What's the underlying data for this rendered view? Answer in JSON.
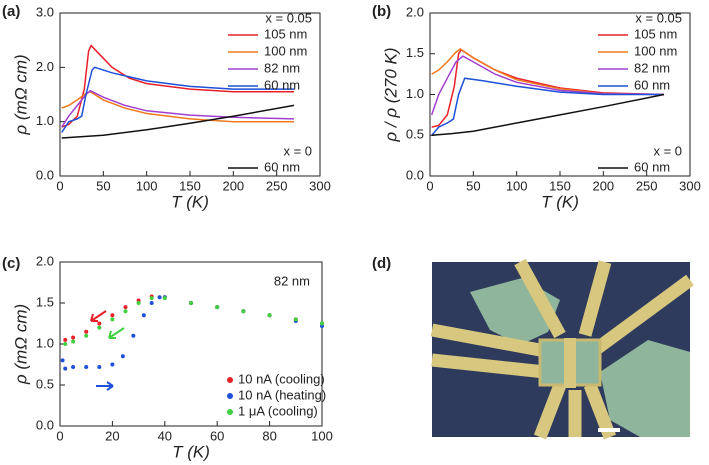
{
  "chart_data": [
    {
      "type": "line",
      "panel_label": "(a)",
      "xlabel": "T (K)",
      "ylabel": "ρ (mΩ cm)",
      "xlim": [
        0,
        300
      ],
      "xticks": [
        0,
        50,
        100,
        150,
        200,
        250,
        300
      ],
      "ylim": [
        0,
        3.0
      ],
      "yticks": [
        {
          "value": 0,
          "label": "0.0"
        },
        {
          "value": 1,
          "label": "1.0"
        },
        {
          "value": 2,
          "label": "2.0"
        },
        {
          "value": 3,
          "label": "3.0"
        }
      ],
      "groups": [
        {
          "label": "x = 0.05",
          "series": [
            {
              "name": "105 nm",
              "color": "#e8202a",
              "x": [
                2,
                10,
                20,
                28,
                33,
                36,
                45,
                60,
                80,
                100,
                150,
                200,
                270
              ],
              "values": [
                0.9,
                0.95,
                1.1,
                1.6,
                2.3,
                2.4,
                2.25,
                2.0,
                1.8,
                1.7,
                1.6,
                1.55,
                1.55
              ]
            },
            {
              "name": "100 nm",
              "color": "#f07a20",
              "x": [
                2,
                10,
                20,
                30,
                35,
                50,
                75,
                100,
                150,
                200,
                270
              ],
              "values": [
                1.25,
                1.3,
                1.4,
                1.52,
                1.55,
                1.4,
                1.25,
                1.15,
                1.05,
                1.0,
                1.0
              ]
            },
            {
              "name": "82 nm",
              "color": "#a040d0",
              "x": [
                2,
                10,
                20,
                30,
                35,
                50,
                75,
                100,
                150,
                200,
                270
              ],
              "values": [
                0.9,
                1.1,
                1.3,
                1.5,
                1.57,
                1.45,
                1.3,
                1.2,
                1.12,
                1.08,
                1.05
              ]
            },
            {
              "name": "60 nm",
              "color": "#1e50d8",
              "x": [
                2,
                10,
                20,
                25,
                30,
                37,
                40,
                60,
                100,
                150,
                200,
                270
              ],
              "values": [
                0.8,
                1.0,
                1.05,
                1.1,
                1.5,
                1.95,
                2.0,
                1.9,
                1.75,
                1.65,
                1.6,
                1.6
              ]
            }
          ]
        },
        {
          "label": "x = 0",
          "series": [
            {
              "name": "60 nm",
              "color": "#111111",
              "x": [
                2,
                50,
                100,
                150,
                200,
                270
              ],
              "values": [
                0.7,
                0.75,
                0.85,
                0.97,
                1.1,
                1.3
              ]
            }
          ]
        }
      ]
    },
    {
      "type": "line",
      "panel_label": "(b)",
      "xlabel": "T (K)",
      "ylabel": "ρ / ρ (270 K)",
      "xlim": [
        0,
        300
      ],
      "xticks": [
        0,
        50,
        100,
        150,
        200,
        250,
        300
      ],
      "ylim": [
        0,
        2.0
      ],
      "yticks": [
        {
          "value": 0,
          "label": "0.0"
        },
        0.5,
        {
          "value": 1,
          "label": "1.0"
        },
        1.5,
        {
          "value": 2,
          "label": "2.0"
        }
      ],
      "groups": [
        {
          "label": "x = 0.05",
          "series": [
            {
              "name": "105 nm",
              "color": "#e8202a",
              "x": [
                2,
                10,
                20,
                28,
                33,
                36,
                50,
                75,
                100,
                150,
                200,
                270
              ],
              "values": [
                0.6,
                0.62,
                0.75,
                1.1,
                1.5,
                1.55,
                1.45,
                1.3,
                1.2,
                1.08,
                1.02,
                1.0
              ]
            },
            {
              "name": "100 nm",
              "color": "#f07a20",
              "x": [
                2,
                10,
                20,
                30,
                35,
                50,
                75,
                100,
                150,
                200,
                270
              ],
              "values": [
                1.25,
                1.3,
                1.4,
                1.52,
                1.56,
                1.45,
                1.3,
                1.18,
                1.07,
                1.01,
                1.0
              ]
            },
            {
              "name": "82 nm",
              "color": "#a040d0",
              "x": [
                2,
                10,
                20,
                30,
                38,
                50,
                75,
                100,
                150,
                200,
                270
              ],
              "values": [
                0.75,
                1.0,
                1.2,
                1.4,
                1.47,
                1.4,
                1.25,
                1.15,
                1.05,
                1.01,
                1.0
              ]
            },
            {
              "name": "60 nm",
              "color": "#1e50d8",
              "x": [
                2,
                10,
                20,
                27,
                33,
                40,
                60,
                100,
                150,
                200,
                270
              ],
              "values": [
                0.5,
                0.6,
                0.65,
                0.7,
                1.0,
                1.2,
                1.17,
                1.1,
                1.03,
                1.0,
                1.0
              ]
            }
          ]
        },
        {
          "label": "x = 0",
          "series": [
            {
              "name": "60 nm",
              "color": "#111111",
              "x": [
                2,
                25,
                50,
                100,
                150,
                200,
                270
              ],
              "values": [
                0.5,
                0.52,
                0.55,
                0.65,
                0.75,
                0.85,
                1.0
              ]
            }
          ]
        }
      ]
    },
    {
      "type": "scatter",
      "panel_label": "(c)",
      "xlabel": "T (K)",
      "ylabel": "ρ (mΩ cm)",
      "xlim": [
        0,
        100
      ],
      "xticks": [
        0,
        20,
        40,
        60,
        80,
        100
      ],
      "ylim": [
        0,
        2.0
      ],
      "yticks": [
        {
          "value": 0,
          "label": "0.0"
        },
        0.5,
        {
          "value": 1,
          "label": "1.0"
        },
        1.5,
        {
          "value": 2,
          "label": "2.0"
        }
      ],
      "annotation": "82 nm",
      "annotation_color": "#a040d0",
      "series": [
        {
          "name": "10 nA (cooling)",
          "color": "#e8202a",
          "x": [
            2,
            5,
            10,
            15,
            20,
            25,
            30,
            35,
            40,
            50,
            60,
            70,
            80,
            90,
            100
          ],
          "values": [
            1.05,
            1.08,
            1.15,
            1.25,
            1.35,
            1.45,
            1.53,
            1.58,
            1.57,
            1.5,
            1.45,
            1.4,
            1.35,
            1.3,
            1.25
          ]
        },
        {
          "name": "10 nA (heating)",
          "color": "#1e50d8",
          "x": [
            1,
            2,
            5,
            10,
            15,
            20,
            24,
            28,
            32,
            35,
            38,
            40,
            50,
            60,
            70,
            80,
            90,
            100
          ],
          "values": [
            0.8,
            0.7,
            0.72,
            0.72,
            0.72,
            0.75,
            0.85,
            1.1,
            1.35,
            1.5,
            1.57,
            1.57,
            1.5,
            1.45,
            1.4,
            1.35,
            1.28,
            1.22
          ]
        },
        {
          "name": "1 μA (cooling)",
          "color": "#40d040",
          "x": [
            2,
            5,
            10,
            15,
            20,
            25,
            30,
            35,
            40,
            50,
            60,
            70,
            80,
            90,
            100
          ],
          "values": [
            1.0,
            1.03,
            1.1,
            1.2,
            1.3,
            1.4,
            1.5,
            1.56,
            1.56,
            1.5,
            1.45,
            1.4,
            1.35,
            1.3,
            1.25
          ]
        }
      ]
    }
  ],
  "panel_d": {
    "label": "(d)"
  }
}
